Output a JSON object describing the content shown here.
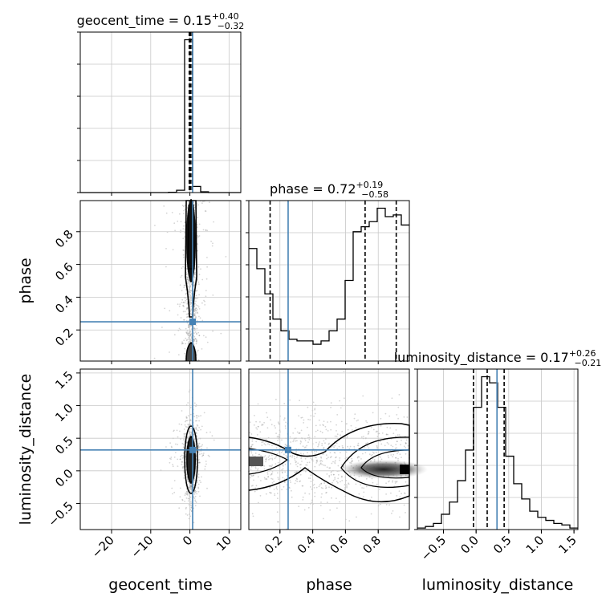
{
  "chart_data": {
    "type": "corner",
    "parameters": [
      "geocent_time",
      "phase",
      "luminosity_distance"
    ],
    "title_parts": [
      {
        "name": "geocent_time",
        "median": "0.15",
        "plus": "+0.40",
        "minus": "−0.32"
      },
      {
        "name": "phase",
        "median": "0.72",
        "plus": "+0.19",
        "minus": "−0.58"
      },
      {
        "name": "luminosity_distance",
        "median": "0.17",
        "plus": "+0.26",
        "minus": "−0.21"
      }
    ],
    "axes": {
      "geocent_time": {
        "lim": [
          -28,
          13
        ],
        "ticks": [
          -20,
          -10,
          0,
          10
        ],
        "tick_labels": [
          "−20",
          "−10",
          "0",
          "10"
        ]
      },
      "phase": {
        "lim": [
          0.01,
          0.99
        ],
        "ticks": [
          0.2,
          0.4,
          0.6,
          0.8
        ],
        "tick_labels": [
          "0.2",
          "0.4",
          "0.6",
          "0.8"
        ]
      },
      "luminosity_distance": {
        "lim": [
          -0.9,
          1.56
        ],
        "ticks": [
          -0.5,
          0.0,
          0.5,
          1.0,
          1.5
        ],
        "tick_labels": [
          "−0.5",
          "0.0",
          "0.5",
          "1.0",
          "1.5"
        ]
      }
    },
    "truths": {
      "geocent_time": 0.7,
      "phase": 0.25,
      "luminosity_distance": 0.32
    },
    "quantiles": {
      "geocent_time": [
        -0.17,
        0.15,
        0.55
      ],
      "phase": [
        0.14,
        0.72,
        0.91
      ],
      "luminosity_distance": [
        -0.04,
        0.17,
        0.43
      ]
    },
    "hist_1d": {
      "geocent_time": {
        "edges": [
          -28,
          -25.95,
          -23.9,
          -21.85,
          -19.8,
          -17.75,
          -15.7,
          -13.65,
          -11.6,
          -9.55,
          -7.5,
          -5.45,
          -3.4,
          -1.35,
          0.7,
          2.75,
          4.75,
          6.8,
          8.85,
          10.9,
          13
        ],
        "counts": [
          0,
          0,
          0,
          0,
          0,
          0,
          0,
          0,
          0,
          0,
          0,
          0.2,
          1.5,
          100,
          4,
          0.5,
          0,
          0,
          0,
          0
        ]
      },
      "phase": {
        "edges": [
          0.01,
          0.059,
          0.108,
          0.157,
          0.206,
          0.255,
          0.304,
          0.353,
          0.402,
          0.451,
          0.5,
          0.549,
          0.598,
          0.647,
          0.696,
          0.745,
          0.794,
          0.843,
          0.892,
          0.941,
          0.99
        ],
        "counts": [
          67,
          55,
          40,
          25,
          18,
          13,
          12,
          12,
          10,
          12,
          18,
          25,
          48,
          77,
          80,
          83,
          91,
          86,
          87,
          81
        ]
      },
      "luminosity_distance": {
        "edges": [
          -0.9,
          -0.777,
          -0.654,
          -0.531,
          -0.408,
          -0.285,
          -0.162,
          -0.039,
          0.084,
          0.207,
          0.33,
          0.453,
          0.576,
          0.699,
          0.822,
          0.945,
          1.068,
          1.191,
          1.314,
          1.437,
          1.56
        ],
        "counts": [
          0.5,
          1,
          2,
          5,
          9,
          16,
          26,
          40,
          50,
          48,
          40,
          24,
          15,
          10,
          6,
          4,
          3,
          2,
          1.5,
          0.5
        ]
      }
    },
    "grid": true
  }
}
